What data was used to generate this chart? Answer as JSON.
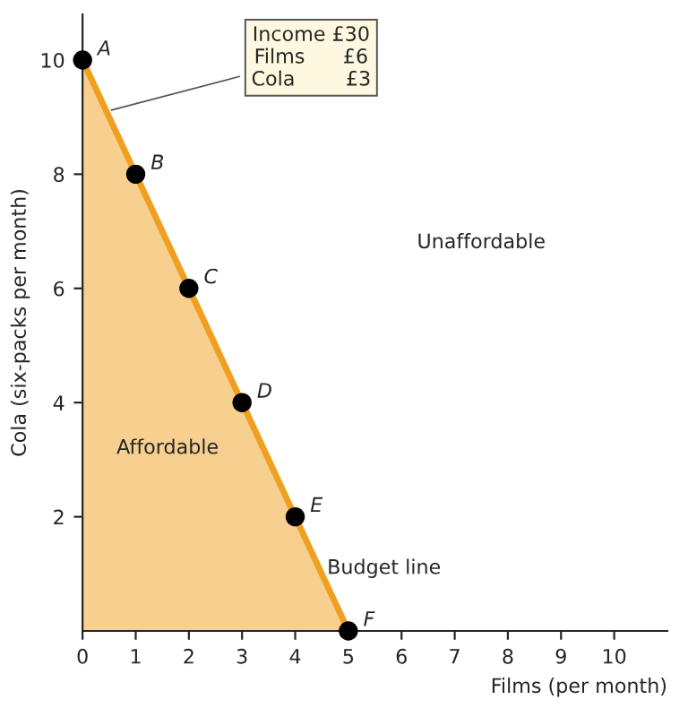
{
  "chart_data": {
    "type": "area",
    "xlabel": "Films (per month)",
    "ylabel": "Cola (six-packs per month)",
    "x": [
      0,
      1,
      2,
      3,
      4,
      5
    ],
    "series": [
      {
        "color": "#f0a020",
        "values": [
          10,
          8,
          6,
          4,
          2,
          0
        ]
      },
      {
        "type": "scatter",
        "marker": "circle",
        "color": "#000000",
        "values": [
          10,
          8,
          6,
          4,
          2,
          0
        ]
      }
    ],
    "xlim": [
      0,
      11
    ],
    "ylim": [
      0,
      10.8
    ],
    "xticks": [
      0,
      1,
      2,
      3,
      4,
      5,
      6,
      7,
      8,
      9,
      10
    ],
    "yticks": [
      2,
      4,
      6,
      8,
      10
    ],
    "grid": false,
    "legend": false,
    "annotations": [
      {
        "text": "A",
        "x": 0,
        "y": 10
      },
      {
        "text": "B",
        "x": 1,
        "y": 8
      },
      {
        "text": "C",
        "x": 2,
        "y": 6
      },
      {
        "text": "D",
        "x": 3,
        "y": 4
      },
      {
        "text": "E",
        "x": 4,
        "y": 2
      },
      {
        "text": "F",
        "x": 5,
        "y": 0
      },
      {
        "text": "Income £30\nFilms      £6\nCola        £3",
        "x": 0.45,
        "y": 9.1
      },
      "Unaffordable",
      "Affordable",
      {
        "text": "Budget line",
        "x": 4.6,
        "y": 1.0
      }
    ]
  }
}
